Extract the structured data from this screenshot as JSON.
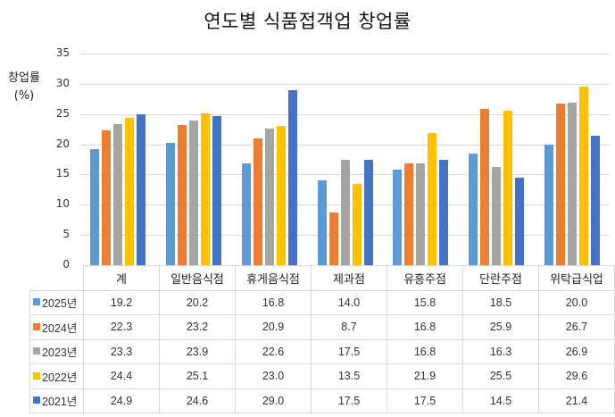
{
  "chart_data": {
    "type": "bar",
    "title": "연도별 식품접객업 창업률",
    "xlabel": "",
    "ylabel": "창업률 (%)",
    "ylim": [
      0,
      35
    ],
    "yticks": [
      0,
      5,
      10,
      15,
      20,
      25,
      30,
      35
    ],
    "grid": true,
    "legend_position": "data-table",
    "categories": [
      "계",
      "일반음식점",
      "휴게음식점",
      "제과점",
      "유흥주점",
      "단란주점",
      "위탁급식업"
    ],
    "series": [
      {
        "name": "2025년",
        "color": "#5b9bd5",
        "values": [
          19.2,
          20.2,
          16.8,
          14.0,
          15.8,
          18.5,
          20.0
        ]
      },
      {
        "name": "2024년",
        "color": "#ed7d31",
        "values": [
          22.3,
          23.2,
          20.9,
          8.7,
          16.8,
          25.9,
          26.7
        ]
      },
      {
        "name": "2023년",
        "color": "#a5a5a5",
        "values": [
          23.3,
          23.9,
          22.6,
          17.5,
          16.8,
          16.3,
          26.9
        ]
      },
      {
        "name": "2022년",
        "color": "#ffc000",
        "values": [
          24.4,
          25.1,
          23.0,
          13.5,
          21.9,
          25.5,
          29.6
        ]
      },
      {
        "name": "2021년",
        "color": "#4472c4",
        "values": [
          24.9,
          24.6,
          29.0,
          17.5,
          17.5,
          14.5,
          21.4
        ]
      }
    ]
  },
  "labels": {
    "title": "연도별 식품접객업 창업률",
    "ylabel_line1": "창업률",
    "ylabel_line2": "(%)"
  },
  "table": {
    "headers": [
      "계",
      "일반음식점",
      "휴게음식점",
      "제과점",
      "유흥주점",
      "단란주점",
      "위탁급식업"
    ],
    "rows": [
      {
        "label": "2025년",
        "values": [
          "19.2",
          "20.2",
          "16.8",
          "14.0",
          "15.8",
          "18.5",
          "20.0"
        ]
      },
      {
        "label": "2024년",
        "values": [
          "22.3",
          "23.2",
          "20.9",
          "8.7",
          "16.8",
          "25.9",
          "26.7"
        ]
      },
      {
        "label": "2023년",
        "values": [
          "23.3",
          "23.9",
          "22.6",
          "17.5",
          "16.8",
          "16.3",
          "26.9"
        ]
      },
      {
        "label": "2022년",
        "values": [
          "24.4",
          "25.1",
          "23.0",
          "13.5",
          "21.9",
          "25.5",
          "29.6"
        ]
      },
      {
        "label": "2021년",
        "values": [
          "24.9",
          "24.6",
          "29.0",
          "17.5",
          "17.5",
          "14.5",
          "21.4"
        ]
      }
    ]
  }
}
